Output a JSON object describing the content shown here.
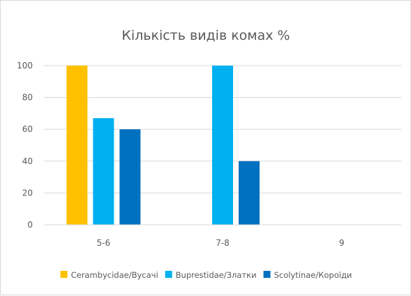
{
  "chart_data": {
    "type": "bar",
    "title": "Кількість видів комах %",
    "xlabel": "",
    "ylabel": "",
    "categories": [
      "5-6",
      "7-8",
      "9"
    ],
    "ylim": [
      0,
      100
    ],
    "yticks": [
      0,
      20,
      40,
      60,
      80,
      100
    ],
    "grid": true,
    "legend_position": "bottom",
    "series": [
      {
        "name": "Cerambycidae/Вусачі",
        "color": "#ffc000",
        "values": [
          100,
          0,
          0
        ]
      },
      {
        "name": "Buprestidae/Златки",
        "color": "#00b0f0",
        "values": [
          67,
          100,
          0
        ]
      },
      {
        "name": "Scolytinae/Короїди",
        "color": "#0070c0",
        "values": [
          60,
          40,
          0
        ]
      }
    ]
  }
}
